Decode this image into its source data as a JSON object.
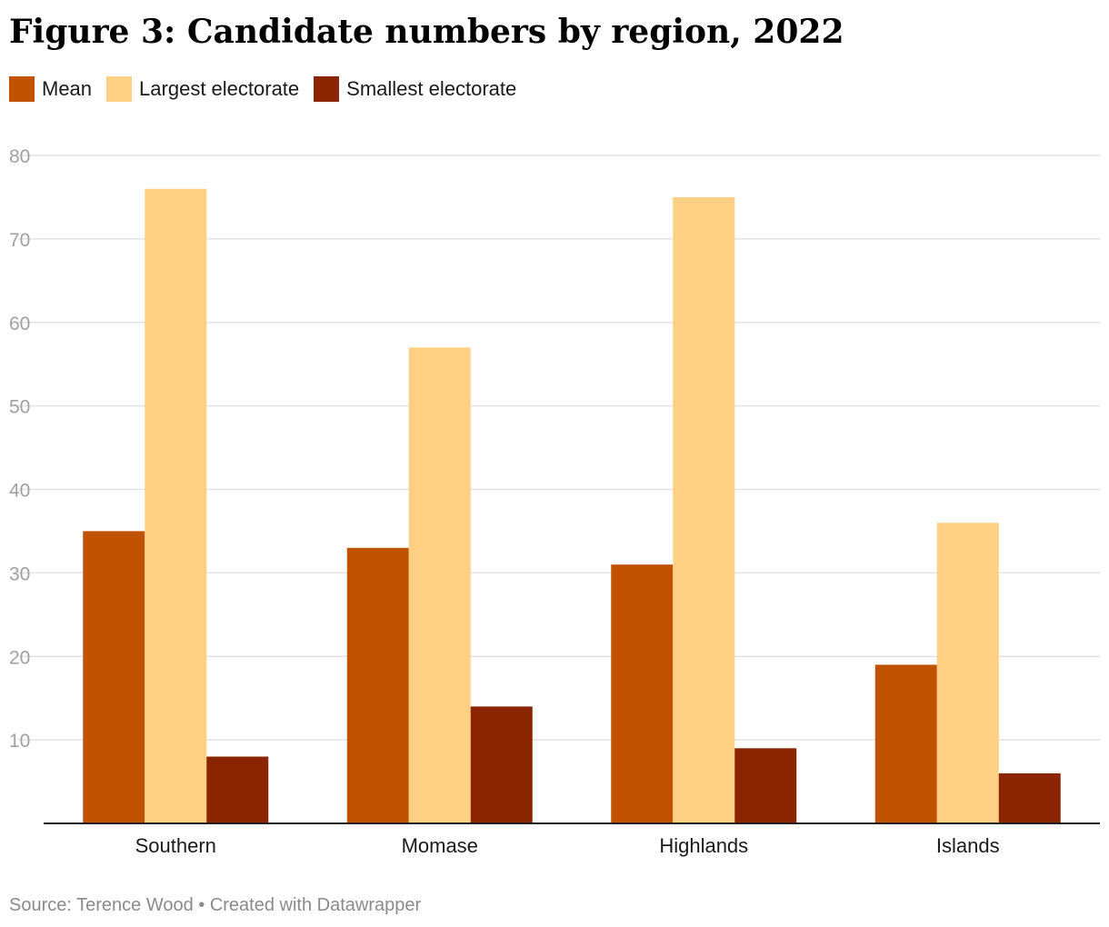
{
  "chart_data": {
    "type": "bar",
    "title": "Figure 3: Candidate numbers by region, 2022",
    "categories": [
      "Southern",
      "Momase",
      "Highlands",
      "Islands"
    ],
    "series": [
      {
        "name": "Mean",
        "color": "#c05200",
        "values": [
          35,
          33,
          31,
          19
        ]
      },
      {
        "name": "Largest electorate",
        "color": "#ffd084",
        "values": [
          76,
          57,
          75,
          36
        ]
      },
      {
        "name": "Smallest electorate",
        "color": "#8b2500",
        "values": [
          8,
          14,
          9,
          6
        ]
      }
    ],
    "xlabel": "",
    "ylabel": "",
    "ylim": [
      0,
      80
    ],
    "yticks": [
      10,
      20,
      30,
      40,
      50,
      60,
      70,
      80
    ],
    "grid": true,
    "legend_position": "top-left"
  },
  "source": "Source: Terence Wood • Created with Datawrapper"
}
